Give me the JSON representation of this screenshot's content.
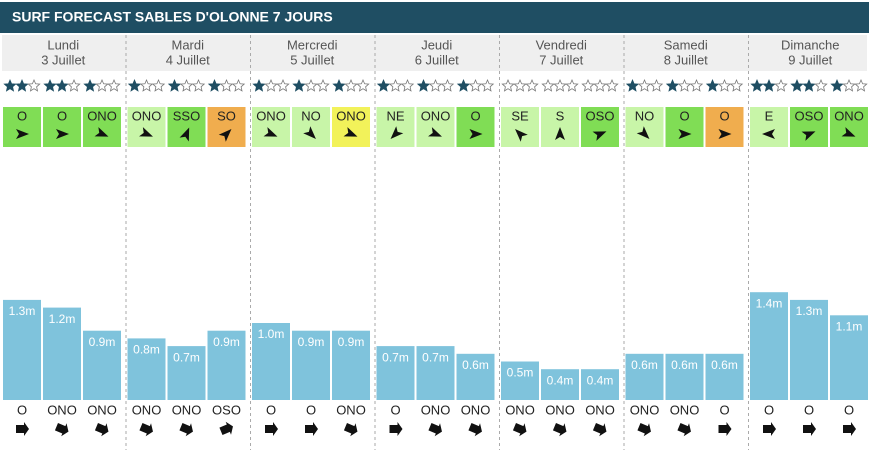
{
  "title": "SURF FORECAST SABLES D'OLONNE 7 JOURS",
  "bar_color": "#7fc3dc",
  "days": [
    {
      "day": "Lundi",
      "date": "3 Juillet",
      "stars": [
        2,
        2,
        1
      ],
      "wind": [
        {
          "dir": "O",
          "color": "#80dd55"
        },
        {
          "dir": "O",
          "color": "#80dd55"
        },
        {
          "dir": "ONO",
          "color": "#80dd55"
        }
      ],
      "waves": [
        1.3,
        1.2,
        0.9
      ],
      "wave_labels": [
        "1.3m",
        "1.2m",
        "0.9m"
      ],
      "swell": [
        "O",
        "ONO",
        "ONO"
      ]
    },
    {
      "day": "Mardi",
      "date": "4 Juillet",
      "stars": [
        1,
        1,
        1
      ],
      "wind": [
        {
          "dir": "ONO",
          "color": "#c8f5a8"
        },
        {
          "dir": "SSO",
          "color": "#80dd55"
        },
        {
          "dir": "SO",
          "color": "#f0ad4e"
        }
      ],
      "waves": [
        0.8,
        0.7,
        0.9
      ],
      "wave_labels": [
        "0.8m",
        "0.7m",
        "0.9m"
      ],
      "swell": [
        "ONO",
        "ONO",
        "OSO"
      ]
    },
    {
      "day": "Mercredi",
      "date": "5 Juillet",
      "stars": [
        1,
        1,
        1
      ],
      "wind": [
        {
          "dir": "ONO",
          "color": "#c8f5a8"
        },
        {
          "dir": "NO",
          "color": "#c8f5a8"
        },
        {
          "dir": "ONO",
          "color": "#f2f25a"
        }
      ],
      "waves": [
        1.0,
        0.9,
        0.9
      ],
      "wave_labels": [
        "1.0m",
        "0.9m",
        "0.9m"
      ],
      "swell": [
        "O",
        "O",
        "ONO"
      ]
    },
    {
      "day": "Jeudi",
      "date": "6 Juillet",
      "stars": [
        1,
        1,
        1
      ],
      "wind": [
        {
          "dir": "NE",
          "color": "#c8f5a8"
        },
        {
          "dir": "ONO",
          "color": "#c8f5a8"
        },
        {
          "dir": "O",
          "color": "#80dd55"
        }
      ],
      "waves": [
        0.7,
        0.7,
        0.6
      ],
      "wave_labels": [
        "0.7m",
        "0.7m",
        "0.6m"
      ],
      "swell": [
        "O",
        "ONO",
        "ONO"
      ]
    },
    {
      "day": "Vendredi",
      "date": "7 Juillet",
      "stars": [
        0,
        0,
        0
      ],
      "wind": [
        {
          "dir": "SE",
          "color": "#c8f5a8"
        },
        {
          "dir": "S",
          "color": "#c8f5a8"
        },
        {
          "dir": "OSO",
          "color": "#80dd55"
        }
      ],
      "waves": [
        0.5,
        0.4,
        0.4
      ],
      "wave_labels": [
        "0.5m",
        "0.4m",
        "0.4m"
      ],
      "swell": [
        "ONO",
        "ONO",
        "ONO"
      ]
    },
    {
      "day": "Samedi",
      "date": "8 Juillet",
      "stars": [
        1,
        1,
        1
      ],
      "wind": [
        {
          "dir": "NO",
          "color": "#c8f5a8"
        },
        {
          "dir": "O",
          "color": "#80dd55"
        },
        {
          "dir": "O",
          "color": "#f0ad4e"
        }
      ],
      "waves": [
        0.6,
        0.6,
        0.6
      ],
      "wave_labels": [
        "0.6m",
        "0.6m",
        "0.6m"
      ],
      "swell": [
        "ONO",
        "ONO",
        "O"
      ]
    },
    {
      "day": "Dimanche",
      "date": "9 Juillet",
      "stars": [
        2,
        2,
        1
      ],
      "wind": [
        {
          "dir": "E",
          "color": "#c8f5a8"
        },
        {
          "dir": "OSO",
          "color": "#80dd55"
        },
        {
          "dir": "ONO",
          "color": "#80dd55"
        }
      ],
      "waves": [
        1.4,
        1.3,
        1.1
      ],
      "wave_labels": [
        "1.4m",
        "1.3m",
        "1.1m"
      ],
      "swell": [
        "O",
        "O",
        "O"
      ]
    }
  ]
}
